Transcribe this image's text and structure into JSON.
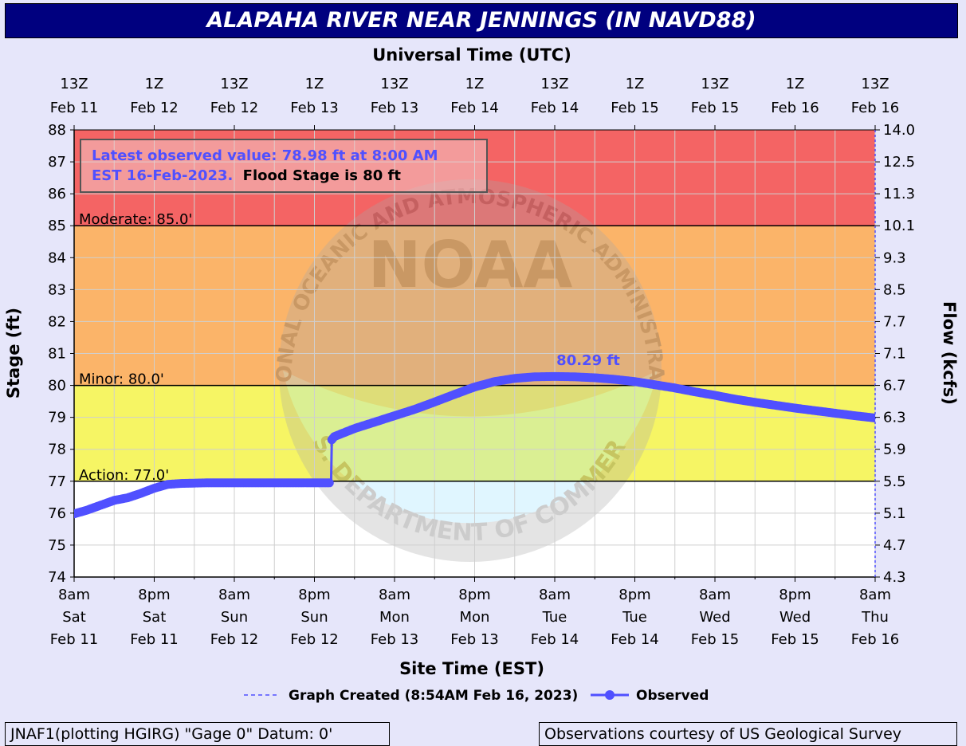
{
  "title": "ALAPAHA RIVER NEAR JENNINGS (IN NAVD88)",
  "footer": {
    "left": "JNAF1(plotting HGIRG) \"Gage 0\" Datum: 0'",
    "right": "Observations courtesy of US Geological Survey"
  },
  "watermark": {
    "word": "NOAA",
    "ring_top": "NATIONAL OCEANIC AND ATMOSPHERIC ADMINISTRATION",
    "ring_bottom": "U.S. DEPARTMENT OF COMMERCE"
  },
  "chart_data": {
    "type": "line",
    "top_axis_title": "Universal Time (UTC)",
    "xlabel": "Site Time (EST)",
    "ylabel": "Stage (ft)",
    "y2label": "Flow (kcfs)",
    "ylim": [
      74,
      88
    ],
    "grid": true,
    "x_range_hours": [
      0,
      120
    ],
    "bottom_ticks": [
      {
        "hours": 0,
        "lines": [
          "8am",
          "Sat",
          "Feb 11"
        ]
      },
      {
        "hours": 12,
        "lines": [
          "8pm",
          "Sat",
          "Feb 11"
        ]
      },
      {
        "hours": 24,
        "lines": [
          "8am",
          "Sun",
          "Feb 12"
        ]
      },
      {
        "hours": 36,
        "lines": [
          "8pm",
          "Sun",
          "Feb 12"
        ]
      },
      {
        "hours": 48,
        "lines": [
          "8am",
          "Mon",
          "Feb 13"
        ]
      },
      {
        "hours": 60,
        "lines": [
          "8pm",
          "Mon",
          "Feb 13"
        ]
      },
      {
        "hours": 72,
        "lines": [
          "8am",
          "Tue",
          "Feb 14"
        ]
      },
      {
        "hours": 84,
        "lines": [
          "8pm",
          "Tue",
          "Feb 14"
        ]
      },
      {
        "hours": 96,
        "lines": [
          "8am",
          "Wed",
          "Feb 15"
        ]
      },
      {
        "hours": 108,
        "lines": [
          "8pm",
          "Wed",
          "Feb 15"
        ]
      },
      {
        "hours": 120,
        "lines": [
          "8am",
          "Thu",
          "Feb 16"
        ]
      }
    ],
    "top_ticks": [
      {
        "hours": 0,
        "lines": [
          "13Z",
          "Feb 11"
        ]
      },
      {
        "hours": 12,
        "lines": [
          "1Z",
          "Feb 12"
        ]
      },
      {
        "hours": 24,
        "lines": [
          "13Z",
          "Feb 12"
        ]
      },
      {
        "hours": 36,
        "lines": [
          "1Z",
          "Feb 13"
        ]
      },
      {
        "hours": 48,
        "lines": [
          "13Z",
          "Feb 13"
        ]
      },
      {
        "hours": 60,
        "lines": [
          "1Z",
          "Feb 14"
        ]
      },
      {
        "hours": 72,
        "lines": [
          "13Z",
          "Feb 14"
        ]
      },
      {
        "hours": 84,
        "lines": [
          "1Z",
          "Feb 15"
        ]
      },
      {
        "hours": 96,
        "lines": [
          "13Z",
          "Feb 15"
        ]
      },
      {
        "hours": 108,
        "lines": [
          "1Z",
          "Feb 16"
        ]
      },
      {
        "hours": 120,
        "lines": [
          "13Z",
          "Feb 16"
        ]
      }
    ],
    "y_ticks": [
      74,
      75,
      76,
      77,
      78,
      79,
      80,
      81,
      82,
      83,
      84,
      85,
      86,
      87,
      88
    ],
    "y2_ticks": [
      {
        "stage": 74,
        "label": "4.3"
      },
      {
        "stage": 75,
        "label": "4.7"
      },
      {
        "stage": 76,
        "label": "5.1"
      },
      {
        "stage": 77,
        "label": "5.5"
      },
      {
        "stage": 78,
        "label": "5.9"
      },
      {
        "stage": 79,
        "label": "6.3"
      },
      {
        "stage": 80,
        "label": "6.7"
      },
      {
        "stage": 81,
        "label": "7.1"
      },
      {
        "stage": 82,
        "label": "7.7"
      },
      {
        "stage": 83,
        "label": "8.5"
      },
      {
        "stage": 84,
        "label": "9.3"
      },
      {
        "stage": 85,
        "label": "10.1"
      },
      {
        "stage": 86,
        "label": "11.3"
      },
      {
        "stage": 87,
        "label": "12.5"
      },
      {
        "stage": 88,
        "label": "14.0"
      }
    ],
    "flood_zones": [
      {
        "name": "major",
        "from": 85,
        "to": 88,
        "color": "#f46464"
      },
      {
        "name": "moderate",
        "from": 80,
        "to": 85,
        "color": "#fbb469"
      },
      {
        "name": "minor",
        "from": 77,
        "to": 80,
        "color": "#f6f564"
      }
    ],
    "thresholds": [
      {
        "label": "Moderate: 85.0'",
        "value": 85
      },
      {
        "label": "Minor: 80.0'",
        "value": 80
      },
      {
        "label": "Action: 77.0'",
        "value": 77
      }
    ],
    "info_box": {
      "observed": "Latest observed value: 78.98 ft at 8:00 AM",
      "observed2": "EST 16-Feb-2023.",
      "flood": "Flood Stage is 80 ft"
    },
    "peak_label": {
      "text": "80.29 ft",
      "hours": 72,
      "value": 80.29
    },
    "series": [
      {
        "name": "Observed",
        "color": "#5050ff",
        "points": [
          [
            0,
            75.98
          ],
          [
            2,
            76.1
          ],
          [
            4,
            76.25
          ],
          [
            6,
            76.4
          ],
          [
            8,
            76.48
          ],
          [
            10,
            76.62
          ],
          [
            12,
            76.78
          ],
          [
            14,
            76.9
          ],
          [
            16,
            76.93
          ],
          [
            18,
            76.94
          ],
          [
            20,
            76.95
          ],
          [
            24,
            76.95
          ],
          [
            28,
            76.95
          ],
          [
            32,
            76.95
          ],
          [
            36,
            76.95
          ],
          [
            38.5,
            76.95
          ],
          [
            38.6,
            78.3
          ],
          [
            39,
            78.4
          ],
          [
            42,
            78.65
          ],
          [
            45,
            78.85
          ],
          [
            48,
            79.05
          ],
          [
            51,
            79.25
          ],
          [
            54,
            79.48
          ],
          [
            57,
            79.72
          ],
          [
            60,
            79.95
          ],
          [
            63,
            80.12
          ],
          [
            66,
            80.22
          ],
          [
            69,
            80.27
          ],
          [
            72,
            80.28
          ],
          [
            75,
            80.27
          ],
          [
            78,
            80.24
          ],
          [
            81,
            80.19
          ],
          [
            84,
            80.12
          ],
          [
            87,
            80.02
          ],
          [
            90,
            79.92
          ],
          [
            93,
            79.8
          ],
          [
            96,
            79.69
          ],
          [
            99,
            79.57
          ],
          [
            102,
            79.47
          ],
          [
            105,
            79.38
          ],
          [
            108,
            79.29
          ],
          [
            111,
            79.21
          ],
          [
            114,
            79.13
          ],
          [
            117,
            79.05
          ],
          [
            120,
            78.98
          ]
        ]
      }
    ],
    "legend": {
      "created": "Graph Created (8:54AM Feb 16, 2023)",
      "observed": "Observed"
    }
  }
}
